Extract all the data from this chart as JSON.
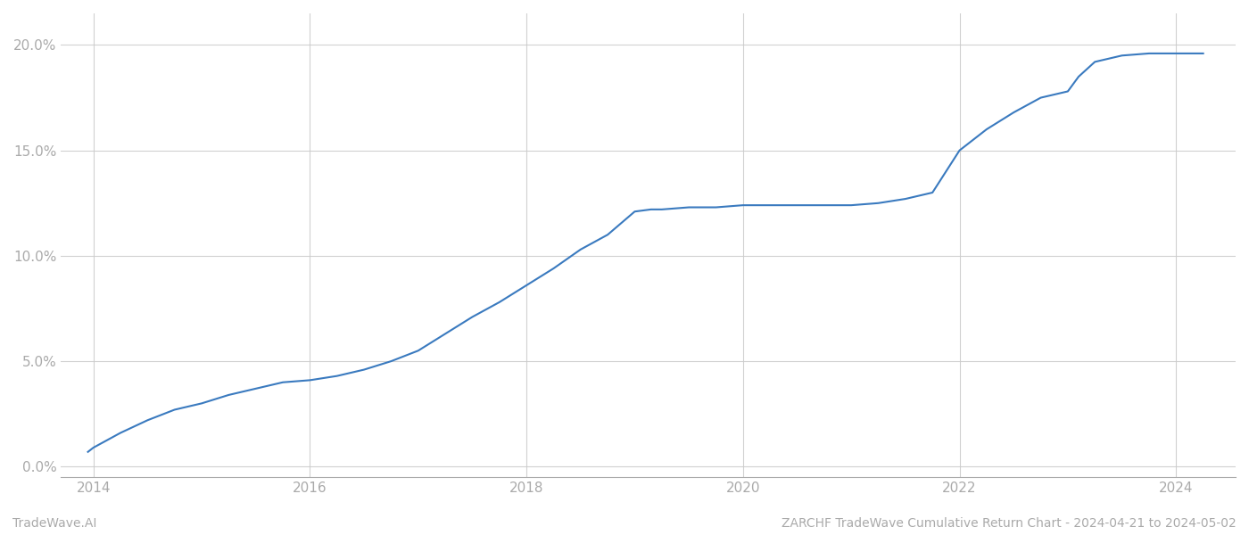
{
  "title": "",
  "footer_left": "TradeWave.AI",
  "footer_right": "ZARCHF TradeWave Cumulative Return Chart - 2024-04-21 to 2024-05-02",
  "line_color": "#3a7abf",
  "background_color": "#ffffff",
  "grid_color": "#cccccc",
  "text_color": "#aaaaaa",
  "x_values": [
    2013.95,
    2014.0,
    2014.25,
    2014.5,
    2014.75,
    2015.0,
    2015.25,
    2015.5,
    2015.75,
    2016.0,
    2016.25,
    2016.5,
    2016.75,
    2017.0,
    2017.25,
    2017.5,
    2017.75,
    2018.0,
    2018.25,
    2018.5,
    2018.75,
    2019.0,
    2019.15,
    2019.25,
    2019.5,
    2019.75,
    2020.0,
    2020.25,
    2020.5,
    2020.75,
    2021.0,
    2021.25,
    2021.5,
    2021.75,
    2022.0,
    2022.25,
    2022.5,
    2022.75,
    2023.0,
    2023.1,
    2023.25,
    2023.5,
    2023.75,
    2024.0,
    2024.25
  ],
  "y_values": [
    0.007,
    0.009,
    0.016,
    0.022,
    0.027,
    0.03,
    0.034,
    0.037,
    0.04,
    0.041,
    0.043,
    0.046,
    0.05,
    0.055,
    0.063,
    0.071,
    0.078,
    0.086,
    0.094,
    0.103,
    0.11,
    0.121,
    0.122,
    0.122,
    0.123,
    0.123,
    0.124,
    0.124,
    0.124,
    0.124,
    0.124,
    0.125,
    0.127,
    0.13,
    0.15,
    0.16,
    0.168,
    0.175,
    0.178,
    0.185,
    0.192,
    0.195,
    0.196,
    0.196,
    0.196
  ],
  "xlim": [
    2013.7,
    2024.55
  ],
  "ylim": [
    -0.005,
    0.215
  ],
  "yticks": [
    0.0,
    0.05,
    0.1,
    0.15,
    0.2
  ],
  "ytick_labels": [
    "0.0%",
    "5.0%",
    "10.0%",
    "15.0%",
    "20.0%"
  ],
  "xticks": [
    2014,
    2016,
    2018,
    2020,
    2022,
    2024
  ],
  "xtick_labels": [
    "2014",
    "2016",
    "2018",
    "2020",
    "2022",
    "2024"
  ],
  "line_width": 1.5,
  "figsize": [
    14.0,
    6.0
  ],
  "dpi": 100
}
